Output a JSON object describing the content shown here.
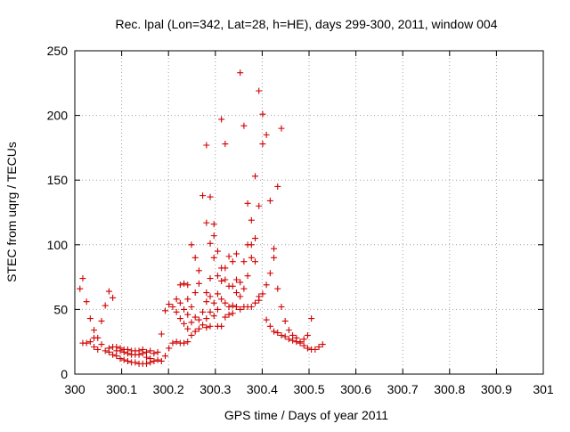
{
  "chart_data": {
    "type": "scatter",
    "title": "Rec. lpal (Lon=342, Lat=28, h=HE), days 299-300, 2011, window 004",
    "xlabel": "GPS time / Days of year 2011",
    "ylabel": "STEC from uqrg / TECUs",
    "xlim": [
      300,
      301
    ],
    "ylim": [
      0,
      250
    ],
    "xticks": [
      300,
      300.1,
      300.2,
      300.3,
      300.4,
      300.5,
      300.6,
      300.7,
      300.8,
      300.9,
      301
    ],
    "xtick_labels": [
      "300",
      "300.1",
      "300.2",
      "300.3",
      "300.4",
      "300.5",
      "300.6",
      "300.7",
      "300.8",
      "300.9",
      "301"
    ],
    "yticks": [
      0,
      50,
      100,
      150,
      200,
      250
    ],
    "ytick_labels": [
      "0",
      "50",
      "100",
      "150",
      "200",
      "250"
    ],
    "grid": true,
    "marker": "+",
    "color": "#d00000",
    "series": [
      {
        "name": "STEC",
        "points": [
          [
            300.011,
            66
          ],
          [
            300.017,
            74
          ],
          [
            300.017,
            24
          ],
          [
            300.025,
            56
          ],
          [
            300.025,
            24
          ],
          [
            300.033,
            43
          ],
          [
            300.033,
            25
          ],
          [
            300.041,
            34
          ],
          [
            300.041,
            28
          ],
          [
            300.041,
            21
          ],
          [
            300.049,
            28
          ],
          [
            300.049,
            19
          ],
          [
            300.057,
            41
          ],
          [
            300.057,
            23
          ],
          [
            300.065,
            53
          ],
          [
            300.065,
            18
          ],
          [
            300.073,
            64
          ],
          [
            300.073,
            20
          ],
          [
            300.073,
            17
          ],
          [
            300.081,
            59
          ],
          [
            300.081,
            21
          ],
          [
            300.081,
            15
          ],
          [
            300.089,
            21
          ],
          [
            300.089,
            18
          ],
          [
            300.089,
            14
          ],
          [
            300.097,
            20
          ],
          [
            300.097,
            18
          ],
          [
            300.097,
            12
          ],
          [
            300.105,
            19
          ],
          [
            300.105,
            17
          ],
          [
            300.105,
            11
          ],
          [
            300.113,
            19
          ],
          [
            300.113,
            16
          ],
          [
            300.113,
            10
          ],
          [
            300.121,
            18
          ],
          [
            300.121,
            15
          ],
          [
            300.121,
            9
          ],
          [
            300.129,
            18
          ],
          [
            300.129,
            15
          ],
          [
            300.129,
            9
          ],
          [
            300.137,
            18
          ],
          [
            300.137,
            15
          ],
          [
            300.137,
            8
          ],
          [
            300.145,
            19
          ],
          [
            300.145,
            16
          ],
          [
            300.145,
            8
          ],
          [
            300.153,
            17
          ],
          [
            300.153,
            13
          ],
          [
            300.153,
            8
          ],
          [
            300.161,
            18
          ],
          [
            300.161,
            12
          ],
          [
            300.161,
            9
          ],
          [
            300.169,
            16
          ],
          [
            300.169,
            10
          ],
          [
            300.177,
            11
          ],
          [
            300.177,
            17
          ],
          [
            300.185,
            31
          ],
          [
            300.185,
            10
          ],
          [
            300.193,
            49
          ],
          [
            300.193,
            14
          ],
          [
            300.201,
            54
          ],
          [
            300.201,
            20
          ],
          [
            300.209,
            52
          ],
          [
            300.209,
            24
          ],
          [
            300.217,
            48
          ],
          [
            300.217,
            25
          ],
          [
            300.217,
            58
          ],
          [
            300.225,
            69
          ],
          [
            300.225,
            55
          ],
          [
            300.225,
            43
          ],
          [
            300.225,
            24
          ],
          [
            300.233,
            70
          ],
          [
            300.233,
            50
          ],
          [
            300.233,
            39
          ],
          [
            300.233,
            24
          ],
          [
            300.241,
            69
          ],
          [
            300.241,
            58
          ],
          [
            300.241,
            46
          ],
          [
            300.241,
            35
          ],
          [
            300.241,
            25
          ],
          [
            300.249,
            100
          ],
          [
            300.249,
            52
          ],
          [
            300.249,
            40
          ],
          [
            300.249,
            30
          ],
          [
            300.257,
            90
          ],
          [
            300.257,
            63
          ],
          [
            300.257,
            44
          ],
          [
            300.257,
            33
          ],
          [
            300.265,
            80
          ],
          [
            300.265,
            70
          ],
          [
            300.265,
            42
          ],
          [
            300.265,
            35
          ],
          [
            300.273,
            138
          ],
          [
            300.273,
            48
          ],
          [
            300.273,
            38
          ],
          [
            300.281,
            177
          ],
          [
            300.281,
            117
          ],
          [
            300.281,
            63
          ],
          [
            300.281,
            56
          ],
          [
            300.281,
            43
          ],
          [
            300.281,
            36
          ],
          [
            300.289,
            137
          ],
          [
            300.289,
            101
          ],
          [
            300.289,
            74
          ],
          [
            300.289,
            60
          ],
          [
            300.289,
            48
          ],
          [
            300.289,
            37
          ],
          [
            300.297,
            116
          ],
          [
            300.297,
            107
          ],
          [
            300.297,
            90
          ],
          [
            300.297,
            55
          ],
          [
            300.297,
            45
          ],
          [
            300.305,
            95
          ],
          [
            300.305,
            76
          ],
          [
            300.305,
            62
          ],
          [
            300.305,
            50
          ],
          [
            300.305,
            37
          ],
          [
            300.313,
            197
          ],
          [
            300.313,
            82
          ],
          [
            300.313,
            72
          ],
          [
            300.313,
            58
          ],
          [
            300.313,
            37
          ],
          [
            300.321,
            178
          ],
          [
            300.321,
            82
          ],
          [
            300.321,
            73
          ],
          [
            300.321,
            55
          ],
          [
            300.321,
            44
          ],
          [
            300.329,
            91
          ],
          [
            300.329,
            68
          ],
          [
            300.329,
            52
          ],
          [
            300.329,
            46
          ],
          [
            300.337,
            87
          ],
          [
            300.337,
            68
          ],
          [
            300.337,
            53
          ],
          [
            300.337,
            47
          ],
          [
            300.345,
            93
          ],
          [
            300.345,
            73
          ],
          [
            300.345,
            63
          ],
          [
            300.345,
            52
          ],
          [
            300.353,
            233
          ],
          [
            300.353,
            71
          ],
          [
            300.353,
            60
          ],
          [
            300.353,
            50
          ],
          [
            300.361,
            192
          ],
          [
            300.361,
            87
          ],
          [
            300.361,
            66
          ],
          [
            300.361,
            52
          ],
          [
            300.369,
            132
          ],
          [
            300.369,
            100
          ],
          [
            300.369,
            76
          ],
          [
            300.369,
            52
          ],
          [
            300.377,
            119
          ],
          [
            300.377,
            100
          ],
          [
            300.377,
            90
          ],
          [
            300.377,
            52
          ],
          [
            300.385,
            153
          ],
          [
            300.385,
            105
          ],
          [
            300.385,
            87
          ],
          [
            300.385,
            55
          ],
          [
            300.393,
            219
          ],
          [
            300.393,
            130
          ],
          [
            300.393,
            60
          ],
          [
            300.393,
            57
          ],
          [
            300.401,
            201
          ],
          [
            300.401,
            178
          ],
          [
            300.401,
            62
          ],
          [
            300.409,
            185
          ],
          [
            300.409,
            69
          ],
          [
            300.409,
            42
          ],
          [
            300.417,
            134
          ],
          [
            300.417,
            78
          ],
          [
            300.417,
            37
          ],
          [
            300.425,
            97
          ],
          [
            300.425,
            90
          ],
          [
            300.425,
            33
          ],
          [
            300.433,
            145
          ],
          [
            300.433,
            66
          ],
          [
            300.433,
            32
          ],
          [
            300.441,
            190
          ],
          [
            300.441,
            52
          ],
          [
            300.441,
            30
          ],
          [
            300.449,
            41
          ],
          [
            300.449,
            29
          ],
          [
            300.457,
            34
          ],
          [
            300.457,
            27
          ],
          [
            300.465,
            30
          ],
          [
            300.465,
            26
          ],
          [
            300.473,
            28
          ],
          [
            300.473,
            25
          ],
          [
            300.481,
            25
          ],
          [
            300.481,
            24
          ],
          [
            300.489,
            27
          ],
          [
            300.489,
            22
          ],
          [
            300.497,
            30
          ],
          [
            300.497,
            20
          ],
          [
            300.505,
            43
          ],
          [
            300.505,
            19
          ],
          [
            300.513,
            19
          ],
          [
            300.521,
            21
          ],
          [
            300.529,
            23
          ]
        ]
      }
    ]
  }
}
